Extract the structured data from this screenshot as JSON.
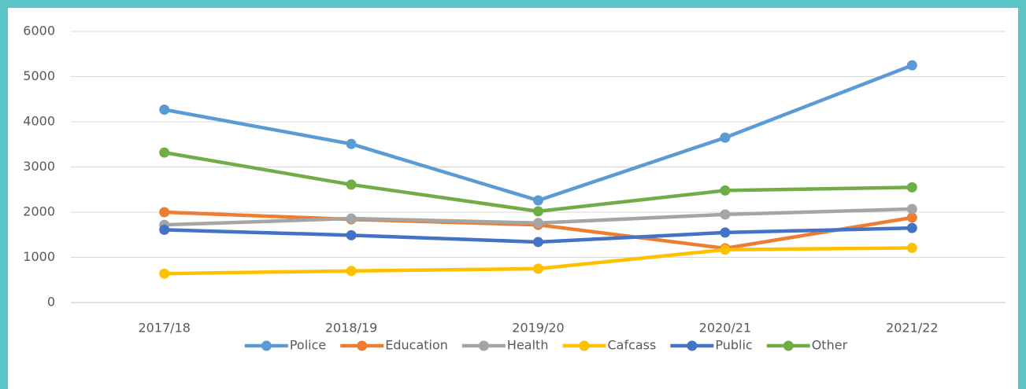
{
  "chart_data": {
    "type": "line",
    "categories": [
      "2017/18",
      "2018/19",
      "2019/20",
      "2020/21",
      "2021/22"
    ],
    "series": [
      {
        "name": "Police",
        "color": "#5b9bd5",
        "values": [
          4270,
          3510,
          2260,
          3650,
          5250
        ]
      },
      {
        "name": "Education",
        "color": "#ed7d31",
        "values": [
          2000,
          1840,
          1720,
          1200,
          1880
        ]
      },
      {
        "name": "Health",
        "color": "#a5a5a5",
        "values": [
          1720,
          1860,
          1760,
          1950,
          2070
        ]
      },
      {
        "name": "Cafcass",
        "color": "#ffc000",
        "values": [
          640,
          700,
          750,
          1170,
          1210
        ]
      },
      {
        "name": "Public",
        "color": "#4472c4",
        "values": [
          1610,
          1490,
          1340,
          1550,
          1650
        ]
      },
      {
        "name": "Other",
        "color": "#70ad47",
        "values": [
          3320,
          2610,
          2020,
          2480,
          2550
        ]
      }
    ],
    "ylim": [
      0,
      6000
    ],
    "yticks": [
      0,
      1000,
      2000,
      3000,
      4000,
      5000,
      6000
    ],
    "grid": true,
    "legend": "bottom"
  }
}
